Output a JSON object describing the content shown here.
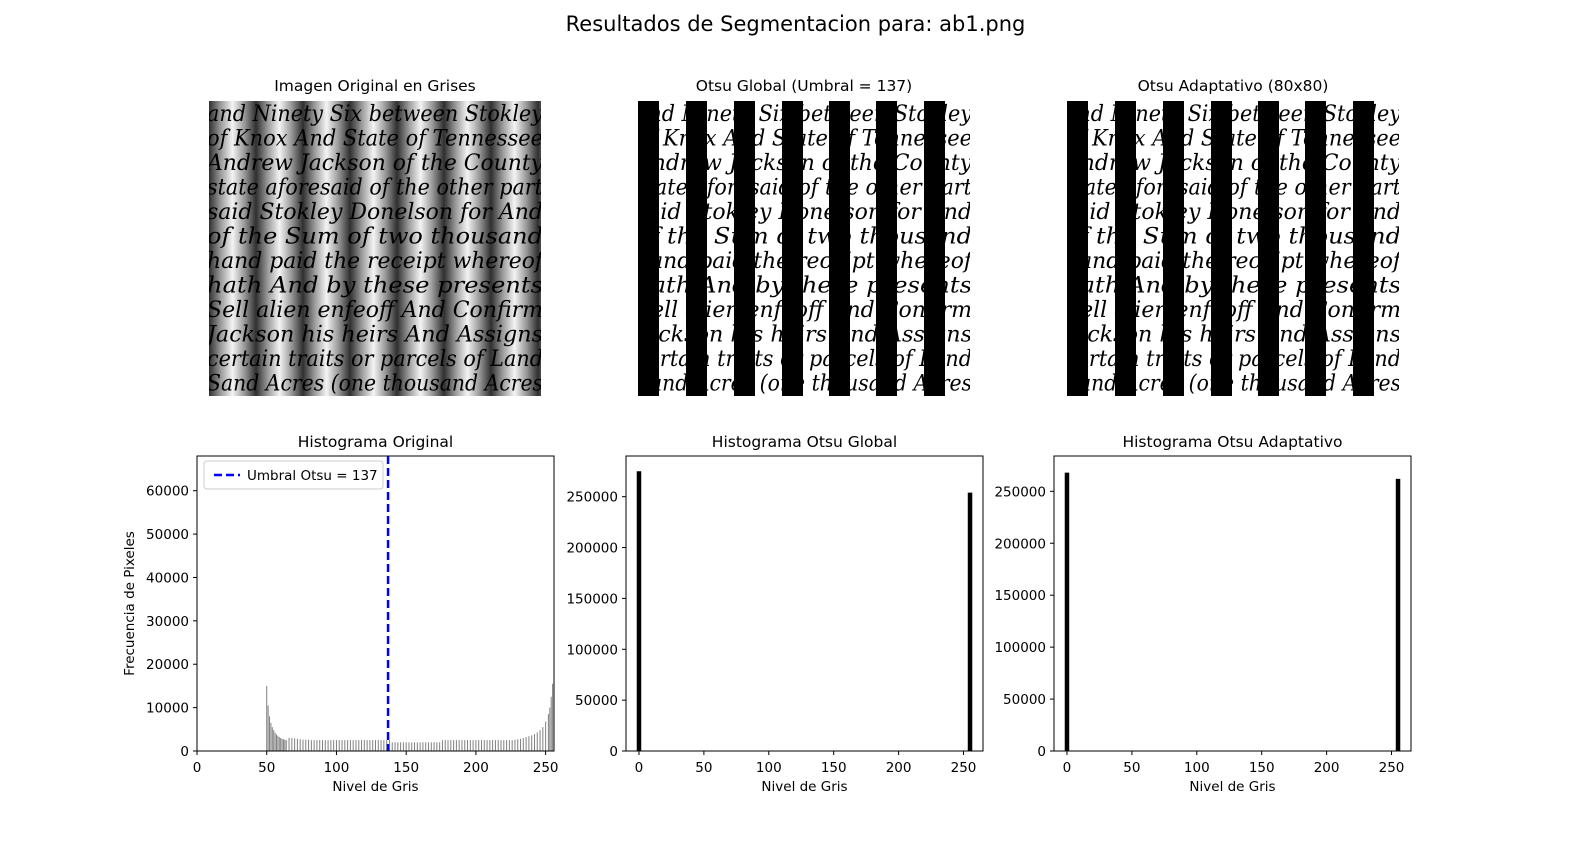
{
  "figure": {
    "suptitle": "Resultados de Segmentacion para: ab1.png"
  },
  "images": [
    {
      "title": "Imagen Original en Grises",
      "kind": "grayscale"
    },
    {
      "title": "Otsu Global (Umbral = 137)",
      "kind": "binary"
    },
    {
      "title": "Otsu Adaptativo (80x80)",
      "kind": "binary"
    }
  ],
  "handwriting_lines": [
    "and Ninety Six between Stokley",
    "of Knox And State of Tennessee",
    "Andrew Jackson of the County",
    "state aforesaid of the other part",
    "said Stokley Donelson for And",
    "of the Sum of two thousand",
    "hand paid the receipt whereof",
    "hath And by these presents",
    "Sell alien enfeoff And Confirm",
    "Jackson his heirs And Assigns",
    "certain traits or parcels of Land",
    "Sand Acres (one thousand Acres"
  ],
  "colors": {
    "histogram_original": "#808080",
    "histogram_binary": "#000000",
    "threshold_line": "#0000ff"
  },
  "chart_data": [
    {
      "type": "bar",
      "title": "Histograma Original",
      "xlabel": "Nivel de Gris",
      "ylabel": "Frecuencia de Pixeles",
      "xlim": [
        0,
        256
      ],
      "ylim": [
        0,
        68000
      ],
      "xticks": [
        0,
        50,
        100,
        150,
        200,
        250
      ],
      "yticks": [
        0,
        10000,
        20000,
        30000,
        40000,
        50000,
        60000
      ],
      "grid": false,
      "legend": {
        "entries": [
          "Umbral Otsu = 137"
        ],
        "placement": "upper left"
      },
      "threshold": 137,
      "bins": [
        [
          50,
          15000
        ],
        [
          51,
          10500
        ],
        [
          52,
          8000
        ],
        [
          53,
          6500
        ],
        [
          54,
          5500
        ],
        [
          55,
          4800
        ],
        [
          56,
          4200
        ],
        [
          57,
          3800
        ],
        [
          58,
          3500
        ],
        [
          59,
          3200
        ],
        [
          60,
          3000
        ],
        [
          61,
          2800
        ],
        [
          62,
          2700
        ],
        [
          63,
          2600
        ],
        [
          64,
          2500
        ],
        [
          66,
          3000
        ],
        [
          68,
          3000
        ],
        [
          70,
          2900
        ],
        [
          72,
          2800
        ],
        [
          74,
          2700
        ],
        [
          76,
          2600
        ],
        [
          78,
          2600
        ],
        [
          80,
          2600
        ],
        [
          82,
          2500
        ],
        [
          84,
          2500
        ],
        [
          86,
          2500
        ],
        [
          88,
          2500
        ],
        [
          90,
          2500
        ],
        [
          92,
          2500
        ],
        [
          94,
          2500
        ],
        [
          96,
          2500
        ],
        [
          98,
          2500
        ],
        [
          100,
          2500
        ],
        [
          102,
          2500
        ],
        [
          104,
          2500
        ],
        [
          106,
          2500
        ],
        [
          108,
          2500
        ],
        [
          110,
          2500
        ],
        [
          112,
          2500
        ],
        [
          114,
          2500
        ],
        [
          116,
          2500
        ],
        [
          118,
          2500
        ],
        [
          120,
          2500
        ],
        [
          122,
          2500
        ],
        [
          124,
          2500
        ],
        [
          126,
          2500
        ],
        [
          128,
          2500
        ],
        [
          130,
          2500
        ],
        [
          132,
          2500
        ],
        [
          134,
          2500
        ],
        [
          136,
          2500
        ],
        [
          138,
          2500
        ],
        [
          140,
          2000
        ],
        [
          142,
          2000
        ],
        [
          144,
          2000
        ],
        [
          146,
          2000
        ],
        [
          148,
          2000
        ],
        [
          150,
          2000
        ],
        [
          152,
          2000
        ],
        [
          154,
          2000
        ],
        [
          156,
          2000
        ],
        [
          158,
          2000
        ],
        [
          160,
          2000
        ],
        [
          162,
          2000
        ],
        [
          164,
          2000
        ],
        [
          166,
          2000
        ],
        [
          168,
          2000
        ],
        [
          170,
          2000
        ],
        [
          172,
          2000
        ],
        [
          174,
          2000
        ],
        [
          176,
          2500
        ],
        [
          178,
          2500
        ],
        [
          180,
          2500
        ],
        [
          182,
          2500
        ],
        [
          184,
          2500
        ],
        [
          186,
          2500
        ],
        [
          188,
          2500
        ],
        [
          190,
          2500
        ],
        [
          192,
          2500
        ],
        [
          194,
          2500
        ],
        [
          196,
          2500
        ],
        [
          198,
          2500
        ],
        [
          200,
          2500
        ],
        [
          202,
          2500
        ],
        [
          204,
          2500
        ],
        [
          206,
          2500
        ],
        [
          208,
          2500
        ],
        [
          210,
          2500
        ],
        [
          212,
          2500
        ],
        [
          214,
          2500
        ],
        [
          216,
          2500
        ],
        [
          218,
          2500
        ],
        [
          220,
          2500
        ],
        [
          222,
          2500
        ],
        [
          224,
          2500
        ],
        [
          226,
          2500
        ],
        [
          228,
          2600
        ],
        [
          230,
          2700
        ],
        [
          232,
          2800
        ],
        [
          234,
          3000
        ],
        [
          236,
          3200
        ],
        [
          238,
          3400
        ],
        [
          240,
          3600
        ],
        [
          242,
          3900
        ],
        [
          244,
          4300
        ],
        [
          246,
          4800
        ],
        [
          248,
          5500
        ],
        [
          250,
          6800
        ],
        [
          252,
          8500
        ],
        [
          253,
          10000
        ],
        [
          254,
          12500
        ],
        [
          255,
          15500
        ]
      ]
    },
    {
      "type": "bar",
      "title": "Histograma Otsu Global",
      "xlabel": "Nivel de Gris",
      "ylabel": "",
      "xlim": [
        -10,
        265
      ],
      "ylim": [
        0,
        290000
      ],
      "xticks": [
        0,
        50,
        100,
        150,
        200,
        250
      ],
      "yticks": [
        0,
        50000,
        100000,
        150000,
        200000,
        250000
      ],
      "grid": false,
      "bins": [
        [
          0,
          275000
        ],
        [
          255,
          254000
        ]
      ]
    },
    {
      "type": "bar",
      "title": "Histograma Otsu Adaptativo",
      "xlabel": "Nivel de Gris",
      "ylabel": "",
      "xlim": [
        -10,
        265
      ],
      "ylim": [
        0,
        284000
      ],
      "xticks": [
        0,
        50,
        100,
        150,
        200,
        250
      ],
      "yticks": [
        0,
        50000,
        100000,
        150000,
        200000,
        250000
      ],
      "grid": false,
      "bins": [
        [
          0,
          268000
        ],
        [
          255,
          262000
        ]
      ]
    }
  ]
}
